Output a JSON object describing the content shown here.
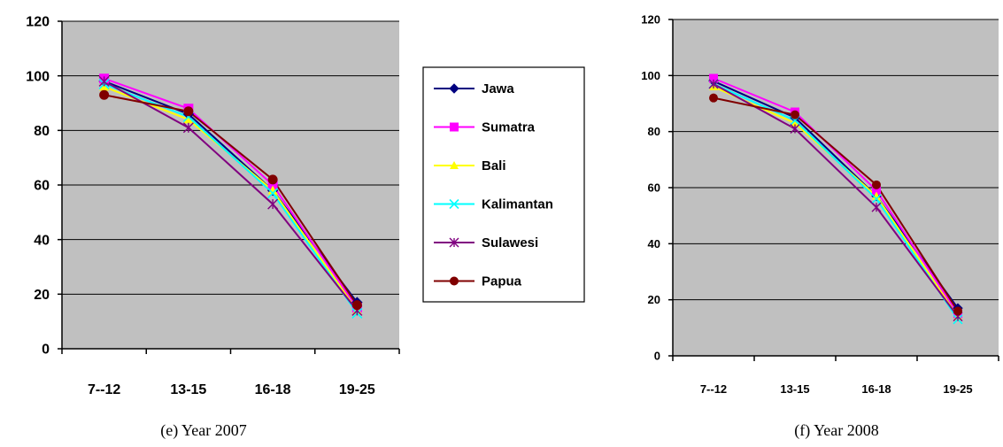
{
  "chart_data": [
    {
      "type": "line",
      "caption": "(e) Year 2007",
      "categories": [
        "7--12",
        "13-15",
        "16-18",
        "19-25"
      ],
      "y_ticks": [
        "0",
        "20",
        "40",
        "60",
        "80",
        "100",
        "120"
      ],
      "ylim": [
        0,
        120
      ],
      "grid": true,
      "legend": "right",
      "series": [
        {
          "name": "Jawa",
          "color": "#000080",
          "marker": "diamond",
          "values": [
            98,
            86,
            58,
            17
          ]
        },
        {
          "name": "Sumatra",
          "color": "#ff00ff",
          "marker": "square",
          "values": [
            99,
            88,
            60,
            15
          ]
        },
        {
          "name": "Bali",
          "color": "#ffff00",
          "marker": "triangle",
          "values": [
            96,
            84,
            58,
            14
          ]
        },
        {
          "name": "Kalimantan",
          "color": "#00ffff",
          "marker": "x",
          "values": [
            97,
            85,
            57,
            13
          ]
        },
        {
          "name": "Sulawesi",
          "color": "#800080",
          "marker": "star",
          "values": [
            98,
            81,
            53,
            14
          ]
        },
        {
          "name": "Papua",
          "color": "#800000",
          "marker": "circle",
          "values": [
            93,
            87,
            62,
            16
          ]
        }
      ]
    },
    {
      "type": "line",
      "caption": "(f) Year 2008",
      "categories": [
        "7--12",
        "13-15",
        "16-18",
        "19-25"
      ],
      "y_ticks": [
        "0",
        "20",
        "40",
        "60",
        "80",
        "100",
        "120"
      ],
      "ylim": [
        0,
        120
      ],
      "grid": true,
      "series": [
        {
          "name": "Jawa",
          "color": "#000080",
          "marker": "diamond",
          "values": [
            98,
            85,
            57,
            17
          ]
        },
        {
          "name": "Sumatra",
          "color": "#ff00ff",
          "marker": "square",
          "values": [
            99,
            87,
            59,
            15
          ]
        },
        {
          "name": "Bali",
          "color": "#ffff00",
          "marker": "triangle",
          "values": [
            96,
            83,
            57,
            14
          ]
        },
        {
          "name": "Kalimantan",
          "color": "#00ffff",
          "marker": "x",
          "values": [
            97,
            84,
            56,
            13
          ]
        },
        {
          "name": "Sulawesi",
          "color": "#800080",
          "marker": "star",
          "values": [
            97,
            81,
            53,
            14
          ]
        },
        {
          "name": "Papua",
          "color": "#800000",
          "marker": "circle",
          "values": [
            92,
            86,
            61,
            16
          ]
        }
      ]
    }
  ]
}
